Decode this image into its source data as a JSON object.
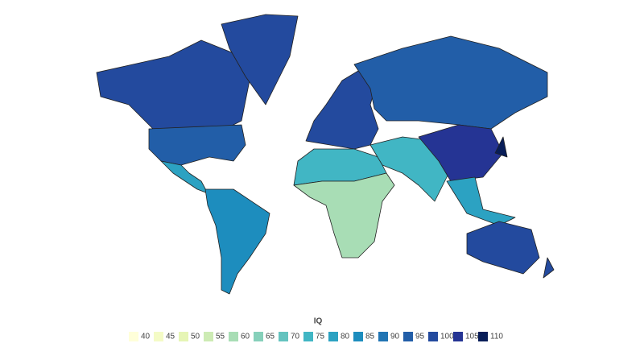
{
  "legend": {
    "title": "IQ",
    "items": [
      {
        "value": 40,
        "color": "#ffffd9"
      },
      {
        "value": 45,
        "color": "#f4fbc6"
      },
      {
        "value": 50,
        "color": "#e6f5b5"
      },
      {
        "value": 55,
        "color": "#cdebb4"
      },
      {
        "value": 60,
        "color": "#a8ddb5"
      },
      {
        "value": 65,
        "color": "#86d0ba"
      },
      {
        "value": 70,
        "color": "#64c3bf"
      },
      {
        "value": 75,
        "color": "#41b6c4"
      },
      {
        "value": 80,
        "color": "#2ca2c2"
      },
      {
        "value": 85,
        "color": "#1d8dbe"
      },
      {
        "value": 90,
        "color": "#2175b4"
      },
      {
        "value": 95,
        "color": "#225ea8"
      },
      {
        "value": 100,
        "color": "#234a9e"
      },
      {
        "value": 105,
        "color": "#253494"
      },
      {
        "value": 110,
        "color": "#081d58"
      }
    ]
  }
}
